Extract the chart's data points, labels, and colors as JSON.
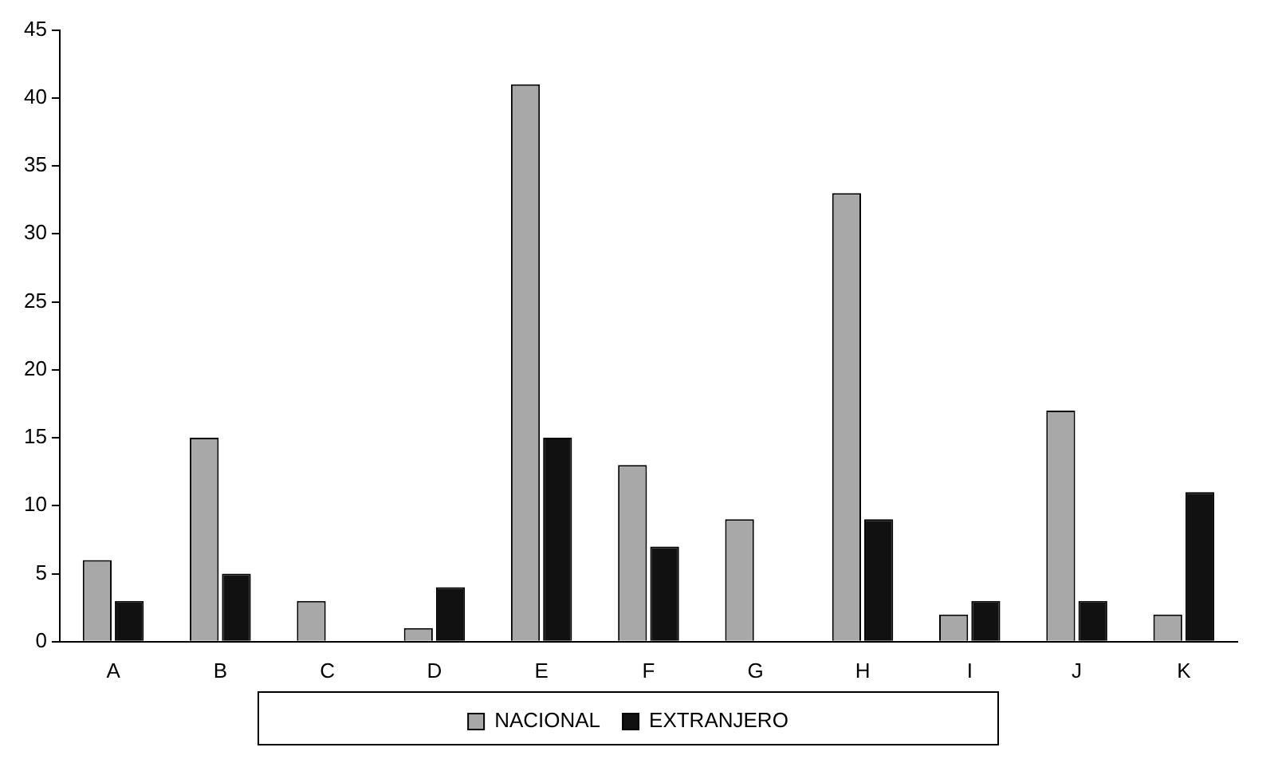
{
  "chart_data": {
    "type": "bar",
    "categories": [
      "A",
      "B",
      "C",
      "D",
      "E",
      "F",
      "G",
      "H",
      "I",
      "J",
      "K"
    ],
    "series": [
      {
        "name": "NACIONAL",
        "color": "#a8a8a8",
        "values": [
          6,
          15,
          3,
          1,
          41,
          13,
          9,
          33,
          2,
          17,
          2
        ]
      },
      {
        "name": "EXTRANJERO",
        "color": "#111111",
        "values": [
          3,
          5,
          0,
          4,
          15,
          7,
          0,
          9,
          3,
          3,
          11
        ]
      }
    ],
    "ylim": [
      0,
      45
    ],
    "yticks": [
      0,
      5,
      10,
      15,
      20,
      25,
      30,
      35,
      40,
      45
    ],
    "grid": false,
    "legend": "bottom"
  }
}
